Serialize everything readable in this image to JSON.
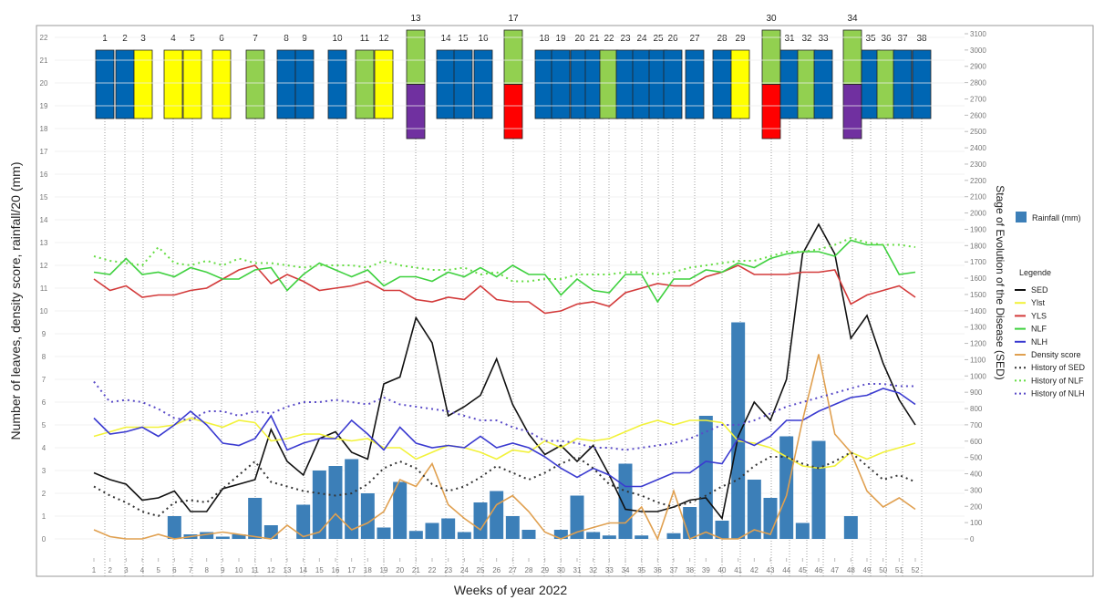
{
  "chart_data": {
    "type": "line",
    "xlabel": "Weeks of year 2022",
    "ylabel": "Number of leaves, density score, rainfall/20 (mm)",
    "y2label": "Stage of Evolution of the Disease (SED)",
    "legend_title": "Legende",
    "x": [
      1,
      2,
      3,
      4,
      5,
      6,
      7,
      8,
      9,
      10,
      11,
      12,
      13,
      14,
      15,
      16,
      17,
      18,
      19,
      20,
      21,
      22,
      23,
      24,
      25,
      26,
      27,
      28,
      29,
      30,
      31,
      32,
      33,
      34,
      35,
      36,
      37,
      38,
      39,
      40,
      41,
      42,
      43,
      44,
      45,
      46,
      47,
      48,
      49,
      50,
      51,
      52
    ],
    "xlim": [
      1,
      52
    ],
    "ylim": [
      0,
      22
    ],
    "yticks": [
      0,
      1,
      2,
      3,
      4,
      5,
      6,
      7,
      8,
      9,
      10,
      11,
      12,
      13,
      14,
      15,
      16,
      17,
      18,
      19,
      20,
      21,
      22
    ],
    "y2lim": [
      0,
      3100
    ],
    "y2ticks": [
      0,
      100,
      200,
      300,
      400,
      500,
      600,
      700,
      800,
      900,
      1000,
      1100,
      1200,
      1300,
      1400,
      1500,
      1600,
      1700,
      1800,
      1900,
      2000,
      2100,
      2200,
      2300,
      2400,
      2500,
      2600,
      2700,
      2800,
      2900,
      3000,
      3100
    ],
    "series": [
      {
        "name": "Rainfall (mm)",
        "type": "bar",
        "color": "#3c7fb8",
        "values": [
          0,
          0,
          0,
          0,
          0,
          1.0,
          0.2,
          0.3,
          0.1,
          0.2,
          1.8,
          0.6,
          0,
          1.5,
          3.0,
          3.2,
          3.5,
          2.0,
          0.5,
          2.5,
          0.35,
          0.7,
          0.9,
          0.3,
          1.6,
          2.1,
          1.0,
          0.4,
          0,
          0.4,
          1.9,
          0.3,
          0.15,
          3.3,
          0.15,
          0,
          0.25,
          1.4,
          5.4,
          0.8,
          9.5,
          2.6,
          1.8,
          4.5,
          0.7,
          4.3,
          0,
          1.0,
          0,
          0,
          0,
          0
        ]
      },
      {
        "name": "SED",
        "color": "#111111",
        "values": [
          2.9,
          2.6,
          2.4,
          1.7,
          1.8,
          2.1,
          1.2,
          1.2,
          2.2,
          2.4,
          2.6,
          4.8,
          3.4,
          2.8,
          4.4,
          4.7,
          3.8,
          3.5,
          6.8,
          7.1,
          9.7,
          8.6,
          5.4,
          5.8,
          6.3,
          7.9,
          5.9,
          4.6,
          3.7,
          4.1,
          3.4,
          4.1,
          2.8,
          1.3,
          1.2,
          1.2,
          1.4,
          1.7,
          1.8,
          0.9,
          4.5,
          6.0,
          5.2,
          7.0,
          12.5,
          13.8,
          12.5,
          8.8,
          9.8,
          7.7,
          6.1,
          5.0
        ]
      },
      {
        "name": "Ylst",
        "color": "#f2f23a",
        "values": [
          4.5,
          4.7,
          4.9,
          4.9,
          4.9,
          5.0,
          5.3,
          5.1,
          4.9,
          5.2,
          5.1,
          4.3,
          4.4,
          4.6,
          4.6,
          4.4,
          4.3,
          4.4,
          4.0,
          4.0,
          3.5,
          3.8,
          4.1,
          4.0,
          3.8,
          3.5,
          3.9,
          3.8,
          4.3,
          4.0,
          4.4,
          4.3,
          4.4,
          4.7,
          5.0,
          5.2,
          5.0,
          5.2,
          5.2,
          5.1,
          4.3,
          4.2,
          4.0,
          3.6,
          3.2,
          3.1,
          3.2,
          3.8,
          3.5,
          3.8,
          4.0,
          4.2
        ]
      },
      {
        "name": "YLS",
        "color": "#d33a3a",
        "values": [
          11.4,
          10.9,
          11.1,
          10.6,
          10.7,
          10.7,
          10.9,
          11.0,
          11.4,
          11.8,
          12.0,
          11.2,
          11.6,
          11.3,
          10.9,
          11.0,
          11.1,
          11.3,
          10.9,
          10.9,
          10.5,
          10.4,
          10.6,
          10.5,
          11.1,
          10.5,
          10.4,
          10.4,
          9.9,
          10.0,
          10.3,
          10.4,
          10.2,
          10.8,
          11.0,
          11.2,
          11.1,
          11.1,
          11.5,
          11.7,
          12.0,
          11.6,
          11.6,
          11.6,
          11.7,
          11.7,
          11.8,
          10.3,
          10.7,
          10.9,
          11.1,
          10.6
        ]
      },
      {
        "name": "NLF",
        "color": "#3fd13f",
        "values": [
          11.7,
          11.6,
          12.3,
          11.6,
          11.7,
          11.5,
          11.9,
          11.7,
          11.4,
          11.4,
          11.8,
          11.9,
          10.9,
          11.6,
          12.1,
          11.8,
          11.5,
          11.8,
          11.1,
          11.5,
          11.5,
          11.3,
          11.7,
          11.5,
          11.9,
          11.5,
          12.0,
          11.6,
          11.6,
          10.7,
          11.4,
          10.9,
          10.8,
          11.6,
          11.6,
          10.4,
          11.4,
          11.4,
          11.8,
          11.7,
          12.1,
          11.9,
          12.3,
          12.5,
          12.6,
          12.6,
          12.4,
          13.1,
          12.9,
          12.9,
          11.6,
          11.7
        ]
      },
      {
        "name": "NLH",
        "color": "#3a3ad0",
        "values": [
          5.3,
          4.6,
          4.7,
          4.9,
          4.5,
          5.0,
          5.6,
          5.0,
          4.2,
          4.1,
          4.4,
          5.4,
          3.9,
          4.2,
          4.4,
          4.4,
          5.2,
          4.6,
          3.9,
          4.9,
          4.2,
          4.0,
          4.1,
          4.0,
          4.5,
          4.0,
          4.2,
          4.0,
          3.6,
          3.1,
          2.7,
          3.1,
          2.8,
          2.3,
          2.3,
          2.6,
          2.9,
          2.9,
          3.4,
          3.3,
          4.4,
          4.1,
          4.5,
          5.2,
          5.2,
          5.6,
          5.9,
          6.2,
          6.3,
          6.6,
          6.4,
          5.9
        ]
      },
      {
        "name": "Density score",
        "color": "#e0a050",
        "values": [
          0.4,
          0.1,
          0.0,
          0.0,
          0.2,
          0.0,
          0.1,
          0.2,
          0.3,
          0.2,
          0.1,
          0.0,
          0.6,
          0.1,
          0.3,
          1.1,
          0.4,
          0.7,
          1.2,
          2.6,
          2.3,
          3.3,
          1.5,
          0.9,
          0.4,
          1.5,
          1.9,
          1.2,
          0.3,
          0.0,
          0.3,
          0.5,
          0.7,
          0.7,
          1.4,
          0.0,
          2.1,
          0.0,
          0.3,
          0.0,
          0.0,
          0.4,
          0.2,
          1.9,
          5.2,
          8.1,
          4.6,
          3.8,
          2.1,
          1.4,
          1.8,
          1.3
        ]
      },
      {
        "name": "History of SED",
        "color": "#333333",
        "dashed": true,
        "values": [
          2.3,
          1.9,
          1.6,
          1.2,
          1.0,
          1.6,
          1.7,
          1.6,
          2.2,
          2.8,
          3.4,
          2.5,
          2.3,
          2.1,
          2.0,
          1.9,
          2.0,
          2.4,
          3.1,
          3.4,
          3.1,
          2.4,
          2.1,
          2.3,
          2.7,
          3.2,
          2.9,
          2.6,
          2.9,
          3.3,
          3.6,
          3.1,
          2.4,
          2.1,
          1.9,
          1.6,
          1.4,
          1.6,
          1.9,
          2.3,
          2.6,
          3.2,
          3.6,
          3.6,
          3.3,
          3.1,
          3.4,
          3.8,
          3.2,
          2.6,
          2.8,
          2.5
        ]
      },
      {
        "name": "History of NLF",
        "color": "#66dd44",
        "dashed": true,
        "values": [
          12.4,
          12.2,
          12.1,
          12.0,
          12.8,
          12.1,
          12.0,
          12.2,
          12.0,
          12.3,
          12.1,
          12.1,
          12.0,
          11.9,
          12.0,
          12.0,
          12.0,
          11.9,
          12.2,
          12.0,
          11.9,
          11.8,
          11.8,
          11.9,
          11.6,
          11.7,
          11.3,
          11.3,
          11.4,
          11.4,
          11.6,
          11.6,
          11.6,
          11.7,
          11.7,
          11.6,
          11.7,
          11.9,
          12.0,
          12.1,
          12.2,
          12.2,
          12.4,
          12.6,
          12.6,
          12.7,
          12.9,
          13.2,
          13.0,
          12.9,
          12.9,
          12.8
        ]
      },
      {
        "name": "History of NLH",
        "color": "#5a4bc8",
        "dashed": true,
        "values": [
          6.9,
          6.0,
          6.1,
          6.0,
          5.7,
          5.3,
          5.2,
          5.6,
          5.6,
          5.4,
          5.6,
          5.5,
          5.8,
          6.0,
          6.0,
          6.1,
          6.0,
          5.9,
          6.2,
          5.9,
          5.8,
          5.7,
          5.6,
          5.4,
          5.2,
          5.2,
          4.9,
          4.7,
          4.3,
          4.3,
          4.2,
          4.0,
          4.0,
          3.9,
          4.0,
          4.1,
          4.2,
          4.4,
          4.7,
          5.0,
          5.0,
          5.2,
          5.5,
          5.8,
          6.0,
          6.2,
          6.4,
          6.6,
          6.8,
          6.8,
          6.7,
          6.7
        ]
      }
    ],
    "stages": [
      {
        "label": "1",
        "colors": [
          "#0066b3"
        ]
      },
      {
        "label": "2",
        "colors": [
          "#0066b3"
        ]
      },
      {
        "label": "3",
        "colors": [
          "#ffff00"
        ]
      },
      {
        "label": "4",
        "colors": [
          "#ffff00"
        ]
      },
      {
        "label": "5",
        "colors": [
          "#ffff00"
        ]
      },
      {
        "label": "6",
        "colors": [
          "#ffff00"
        ]
      },
      {
        "label": "7",
        "colors": [
          "#92d050"
        ]
      },
      {
        "label": "8",
        "colors": [
          "#0066b3"
        ]
      },
      {
        "label": "9",
        "colors": [
          "#0066b3"
        ]
      },
      {
        "label": "10",
        "colors": [
          "#0066b3"
        ]
      },
      {
        "label": "11",
        "colors": [
          "#92d050"
        ]
      },
      {
        "label": "12",
        "colors": [
          "#ffff00"
        ]
      },
      {
        "label": "13",
        "colors": [
          "#92d050",
          "#7030a0"
        ]
      },
      {
        "label": "14",
        "colors": [
          "#0066b3"
        ]
      },
      {
        "label": "15",
        "colors": [
          "#0066b3"
        ]
      },
      {
        "label": "16",
        "colors": [
          "#0066b3"
        ]
      },
      {
        "label": "17",
        "colors": [
          "#92d050",
          "#ff0000"
        ]
      },
      {
        "label": "18",
        "colors": [
          "#0066b3"
        ]
      },
      {
        "label": "19",
        "colors": [
          "#0066b3"
        ]
      },
      {
        "label": "20",
        "colors": [
          "#0066b3"
        ]
      },
      {
        "label": "21",
        "colors": [
          "#0066b3"
        ]
      },
      {
        "label": "22",
        "colors": [
          "#92d050"
        ]
      },
      {
        "label": "23",
        "colors": [
          "#0066b3"
        ]
      },
      {
        "label": "24",
        "colors": [
          "#0066b3"
        ]
      },
      {
        "label": "25",
        "colors": [
          "#0066b3"
        ]
      },
      {
        "label": "26",
        "colors": [
          "#0066b3"
        ]
      },
      {
        "label": "27",
        "colors": [
          "#0066b3"
        ]
      },
      {
        "label": "28",
        "colors": [
          "#0066b3"
        ]
      },
      {
        "label": "29",
        "colors": [
          "#ffff00"
        ]
      },
      {
        "label": "30",
        "colors": [
          "#92d050",
          "#ff0000"
        ]
      },
      {
        "label": "31",
        "colors": [
          "#0066b3"
        ]
      },
      {
        "label": "32",
        "colors": [
          "#92d050"
        ]
      },
      {
        "label": "33",
        "colors": [
          "#0066b3"
        ]
      },
      {
        "label": "34",
        "colors": [
          "#92d050",
          "#7030a0"
        ]
      },
      {
        "label": "35",
        "colors": [
          "#0066b3"
        ]
      },
      {
        "label": "36",
        "colors": [
          "#92d050"
        ]
      },
      {
        "label": "37",
        "colors": [
          "#0066b3"
        ]
      },
      {
        "label": "38",
        "colors": [
          "#0066b3"
        ]
      }
    ]
  }
}
